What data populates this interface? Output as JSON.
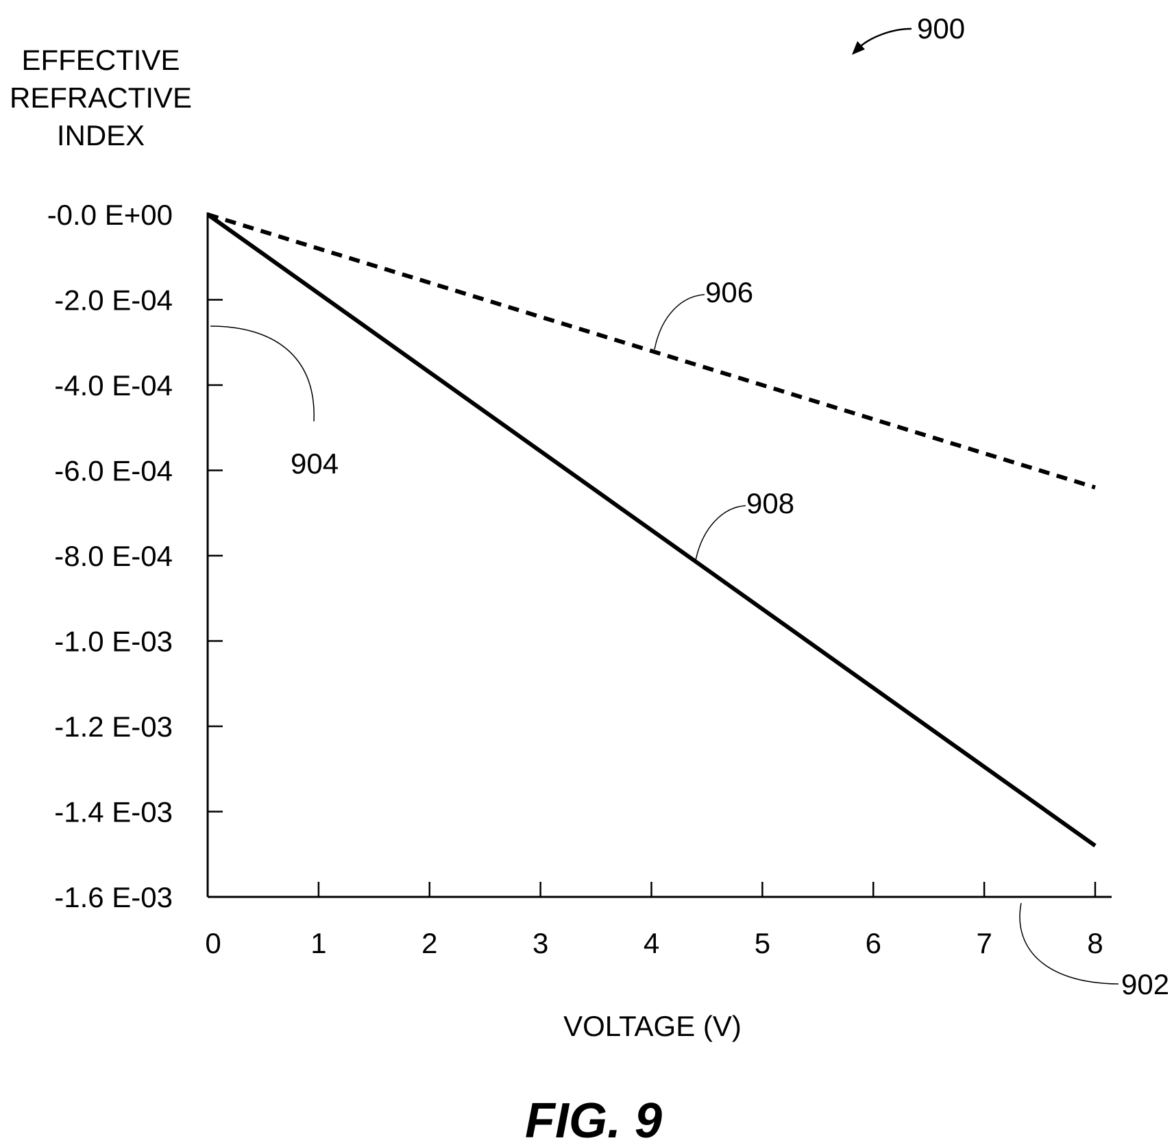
{
  "figure_number": "900",
  "caption": "FIG. 9",
  "chart_data": {
    "type": "line",
    "ylabel_lines": [
      "EFFECTIVE",
      "REFRACTIVE",
      "INDEX"
    ],
    "xlabel": "VOLTAGE (V)",
    "xlim": [
      0,
      8
    ],
    "ylim": [
      -0.0016,
      0
    ],
    "x_ticks": [
      0,
      1,
      2,
      3,
      4,
      5,
      6,
      7,
      8
    ],
    "x_tick_labels": [
      "0",
      "1",
      "2",
      "3",
      "4",
      "5",
      "6",
      "7",
      "8"
    ],
    "y_ticks": [
      0,
      -0.0002,
      -0.0004,
      -0.0006,
      -0.0008,
      -0.001,
      -0.0012,
      -0.0014,
      -0.0016
    ],
    "y_tick_labels": [
      "-0.0 E+00",
      "-2.0 E-04",
      "-4.0 E-04",
      "-6.0 E-04",
      "-8.0 E-04",
      "-1.0 E-03",
      "-1.2 E-03",
      "-1.4 E-03",
      "-1.6 E-03"
    ],
    "series": [
      {
        "style": "dashed",
        "x": [
          0,
          8
        ],
        "y": [
          0,
          -0.00064
        ]
      },
      {
        "style": "solid",
        "x": [
          0,
          8
        ],
        "y": [
          0,
          -0.00148
        ]
      }
    ],
    "annotations": [
      {
        "ref": "902",
        "text": "902"
      },
      {
        "ref": "904",
        "text": "904"
      },
      {
        "ref": "906",
        "text": "906"
      },
      {
        "ref": "908",
        "text": "908"
      }
    ],
    "grid": false,
    "legend": "none"
  }
}
